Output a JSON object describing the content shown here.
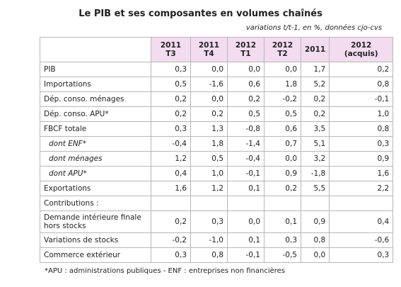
{
  "title": "Le PIB et ses composantes en volumes chaînés",
  "subtitle": "variations t/t-1, en %, données cjo-cvs",
  "columns": [
    {
      "line1": "2011",
      "line2": "T3"
    },
    {
      "line1": "2011",
      "line2": "T4"
    },
    {
      "line1": "2012",
      "line2": "T1"
    },
    {
      "line1": "2012",
      "line2": "T2"
    },
    {
      "line1": "2011",
      "line2": ""
    },
    {
      "line1": "2012",
      "line2": "(acquis)"
    }
  ],
  "rows": [
    {
      "label": "PIB",
      "values": [
        "0,3",
        "0,0",
        "0,0",
        "0,0",
        "1,7",
        "0,2"
      ]
    },
    {
      "label": "Importations",
      "values": [
        "0,5",
        "-1,6",
        "0,6",
        "1,8",
        "5,2",
        "0,8"
      ]
    },
    {
      "label": "Dép. conso. ménages",
      "values": [
        "0,2",
        "0,0",
        "0,2",
        "-0,2",
        "0,2",
        "-0,1"
      ]
    },
    {
      "label": "Dép. conso. APU*",
      "values": [
        "0,2",
        "0,2",
        "0,5",
        "0,5",
        "0,2",
        "1,0"
      ]
    },
    {
      "label": "FBCF totale",
      "values": [
        "0,3",
        "1,3",
        "-0,8",
        "0,6",
        "3,5",
        "0,8"
      ]
    },
    {
      "label": "dont ENF*",
      "values": [
        "-0,4",
        "1,8",
        "-1,4",
        "0,7",
        "5,1",
        "0,3"
      ]
    },
    {
      "label": "dont ménages",
      "values": [
        "1,2",
        "0,5",
        "-0,4",
        "0,0",
        "3,2",
        "0,9"
      ]
    },
    {
      "label": "dont APU*",
      "values": [
        "0,4",
        "1,0",
        "-0,1",
        "0,9",
        "-1,8",
        "1,6"
      ]
    },
    {
      "label": "Exportations",
      "values": [
        "1,6",
        "1,2",
        "0,1",
        "0,2",
        "5,5",
        "2,2"
      ]
    },
    {
      "label": "Contributions :",
      "values": [
        "",
        "",
        "",
        "",
        "",
        ""
      ]
    },
    {
      "label": "Demande intérieure finale hors stocks",
      "values": [
        "0,2",
        "0,3",
        "0,0",
        "0,1",
        "0,9",
        "0,4"
      ]
    },
    {
      "label": "Variations de stocks",
      "values": [
        "-0,2",
        "-1,0",
        "0,1",
        "0,3",
        "0,8",
        "-0,6"
      ]
    },
    {
      "label": "Commerce extérieur",
      "values": [
        "0,3",
        "0,8",
        "-0,1",
        "-0,5",
        "0,0",
        "0,3"
      ]
    }
  ],
  "footnote": "*APU : administrations publiques - ENF : entreprises non financières"
}
